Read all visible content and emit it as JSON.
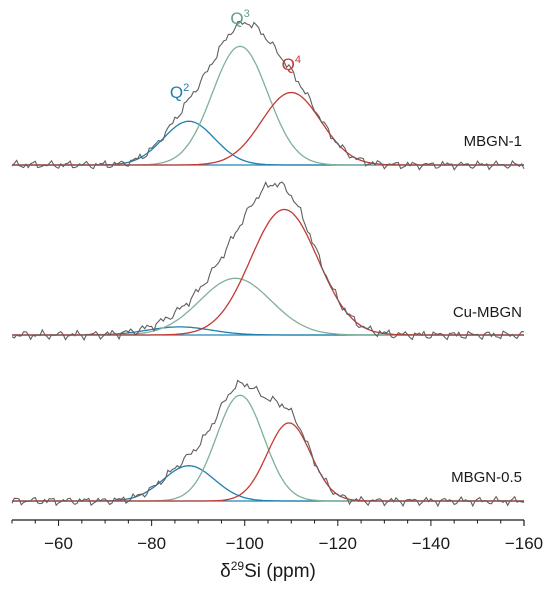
{
  "chart_data": {
    "type": "line",
    "xlabel": {
      "prefix": "δ",
      "sup": "29",
      "main": "Si (ppm)"
    },
    "xlim": [
      -50,
      -160
    ],
    "x_ticks": [
      -60,
      -80,
      -100,
      -120,
      -140,
      -160
    ],
    "x_tick_labels": [
      "−60",
      "−80",
      "−100",
      "−120",
      "−140",
      "−160"
    ],
    "peak_labels": [
      {
        "base": "Q",
        "sup": "2",
        "color": "#1f7fb0",
        "x": -86
      },
      {
        "base": "Q",
        "sup": "3",
        "color": "#5f9f86",
        "x": -99
      },
      {
        "base": "Q",
        "sup": "4",
        "color": "#c43a34",
        "x": -110
      }
    ],
    "colors": {
      "measured": "#5f5f5f",
      "baseline": "#1f88b8",
      "Q2": "#1f7fb0",
      "Q3": "#7fb09a",
      "Q4": "#c43a34"
    },
    "panels": [
      {
        "label": "MBGN-1",
        "components": [
          {
            "name": "Q2",
            "center": -88,
            "height": 0.35,
            "fwhm": 13
          },
          {
            "name": "Q3",
            "center": -99,
            "height": 0.95,
            "fwhm": 14
          },
          {
            "name": "Q4",
            "center": -110,
            "height": 0.58,
            "fwhm": 15
          }
        ],
        "measured_max": 1.0
      },
      {
        "label": "Cu-MBGN",
        "components": [
          {
            "name": "Q2",
            "center": -86,
            "height": 0.06,
            "fwhm": 16
          },
          {
            "name": "Q3",
            "center": -98,
            "height": 0.42,
            "fwhm": 18
          },
          {
            "name": "Q4",
            "center": -108.5,
            "height": 0.93,
            "fwhm": 17
          }
        ],
        "measured_max": 1.0
      },
      {
        "label": "MBGN-0.5",
        "components": [
          {
            "name": "Q2",
            "center": -88,
            "height": 0.28,
            "fwhm": 13
          },
          {
            "name": "Q3",
            "center": -99,
            "height": 0.84,
            "fwhm": 12
          },
          {
            "name": "Q4",
            "center": -109.5,
            "height": 0.62,
            "fwhm": 11
          }
        ],
        "measured_max": 1.0
      }
    ]
  }
}
